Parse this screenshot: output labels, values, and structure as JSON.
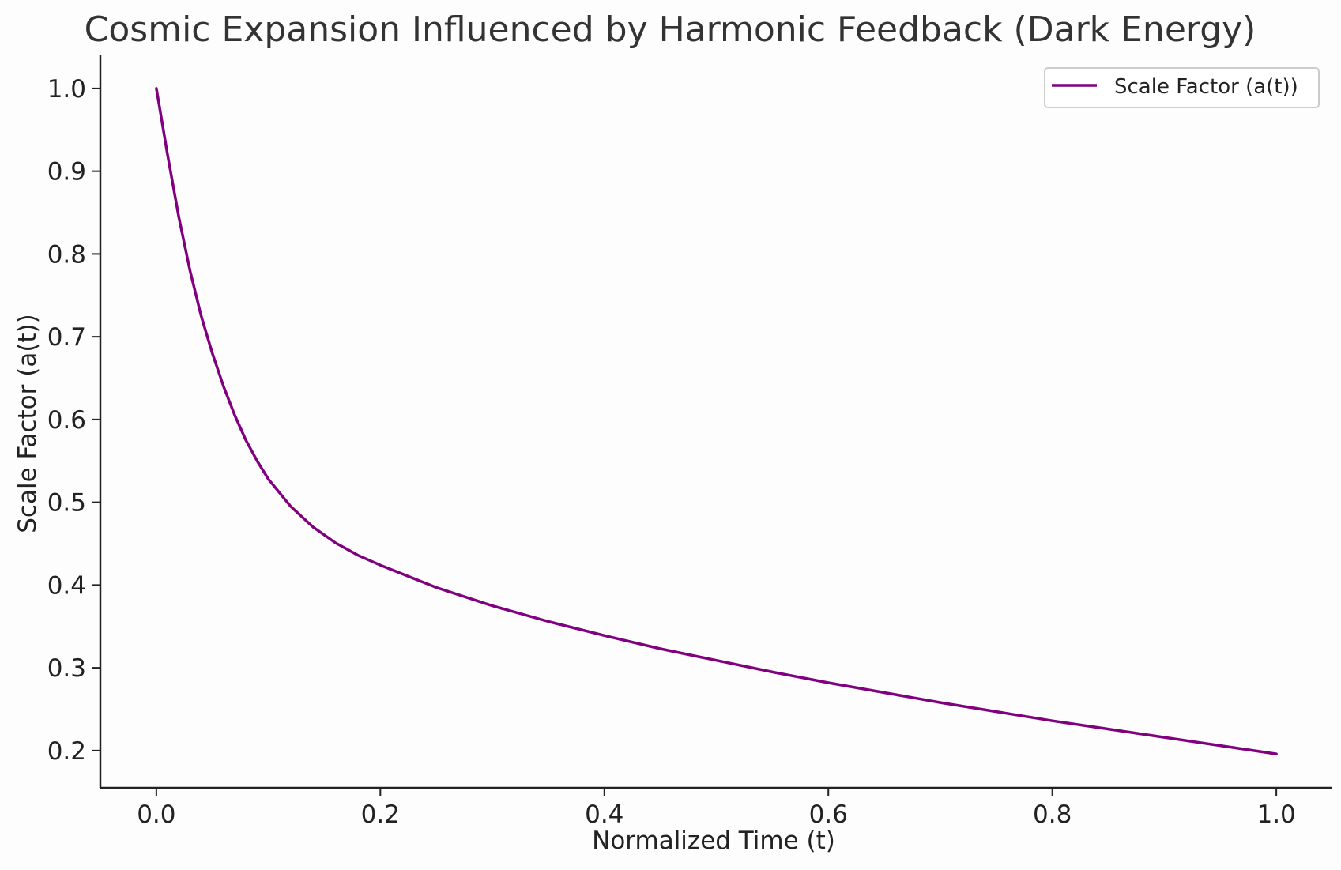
{
  "chart_data": {
    "type": "line",
    "title": "Cosmic Expansion Influenced by Harmonic Feedback (Dark Energy)",
    "xlabel": "Normalized Time (t)",
    "ylabel": "Scale Factor (a(t))",
    "xlim": [
      -0.05,
      1.05
    ],
    "ylim": [
      0.155,
      1.04
    ],
    "xticks": [
      "0.0",
      "0.2",
      "0.4",
      "0.6",
      "0.8",
      "1.0"
    ],
    "yticks": [
      "0.2",
      "0.3",
      "0.4",
      "0.5",
      "0.6",
      "0.7",
      "0.8",
      "0.9",
      "1.0"
    ],
    "grid": false,
    "legend_position": "upper right",
    "series": [
      {
        "name": "Scale Factor (a(t))",
        "color": "#800080",
        "x": [
          0.0,
          0.01,
          0.02,
          0.03,
          0.04,
          0.05,
          0.06,
          0.07,
          0.08,
          0.09,
          0.1,
          0.12,
          0.14,
          0.16,
          0.18,
          0.2,
          0.25,
          0.3,
          0.35,
          0.4,
          0.45,
          0.5,
          0.55,
          0.6,
          0.65,
          0.7,
          0.75,
          0.8,
          0.85,
          0.9,
          0.95,
          1.0
        ],
        "y": [
          1.0,
          0.92,
          0.845,
          0.78,
          0.725,
          0.68,
          0.64,
          0.605,
          0.575,
          0.55,
          0.528,
          0.495,
          0.47,
          0.451,
          0.436,
          0.424,
          0.397,
          0.375,
          0.356,
          0.339,
          0.323,
          0.309,
          0.295,
          0.282,
          0.27,
          0.258,
          0.247,
          0.236,
          0.226,
          0.216,
          0.206,
          0.196
        ]
      }
    ]
  }
}
